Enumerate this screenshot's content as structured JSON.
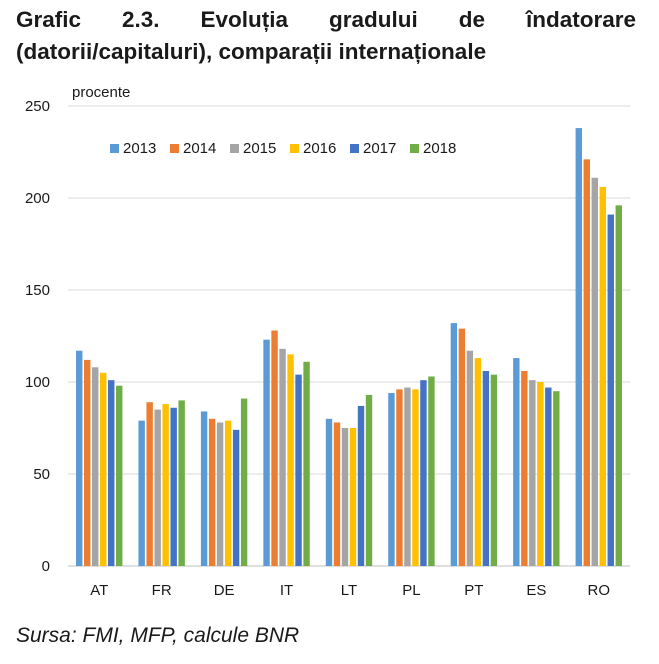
{
  "title": "Grafic 2.3. Evoluția gradului de îndatorare (datorii/capitaluri), comparații internaționale",
  "source": "Sursa: FMI, MFP, calcule BNR",
  "chart_data": {
    "type": "bar",
    "ylabel": "procente",
    "ylim": [
      0,
      250
    ],
    "yticks": [
      0,
      50,
      100,
      150,
      200,
      250
    ],
    "grid": true,
    "legend_position": "top",
    "categories": [
      "AT",
      "FR",
      "DE",
      "IT",
      "LT",
      "PL",
      "PT",
      "ES",
      "RO"
    ],
    "series": [
      {
        "name": "2013",
        "color": "#5b9bd5",
        "values": [
          117,
          79,
          84,
          123,
          80,
          94,
          132,
          113,
          238
        ]
      },
      {
        "name": "2014",
        "color": "#ed7d31",
        "values": [
          112,
          89,
          80,
          128,
          78,
          96,
          129,
          106,
          221
        ]
      },
      {
        "name": "2015",
        "color": "#a5a5a5",
        "values": [
          108,
          85,
          78,
          118,
          75,
          97,
          117,
          101,
          211
        ]
      },
      {
        "name": "2016",
        "color": "#ffc000",
        "values": [
          105,
          88,
          79,
          115,
          75,
          96,
          113,
          100,
          206
        ]
      },
      {
        "name": "2017",
        "color": "#4472c4",
        "values": [
          101,
          86,
          74,
          104,
          87,
          101,
          106,
          97,
          191
        ]
      },
      {
        "name": "2018",
        "color": "#70ad47",
        "values": [
          98,
          90,
          91,
          111,
          93,
          103,
          104,
          95,
          196
        ]
      }
    ]
  }
}
